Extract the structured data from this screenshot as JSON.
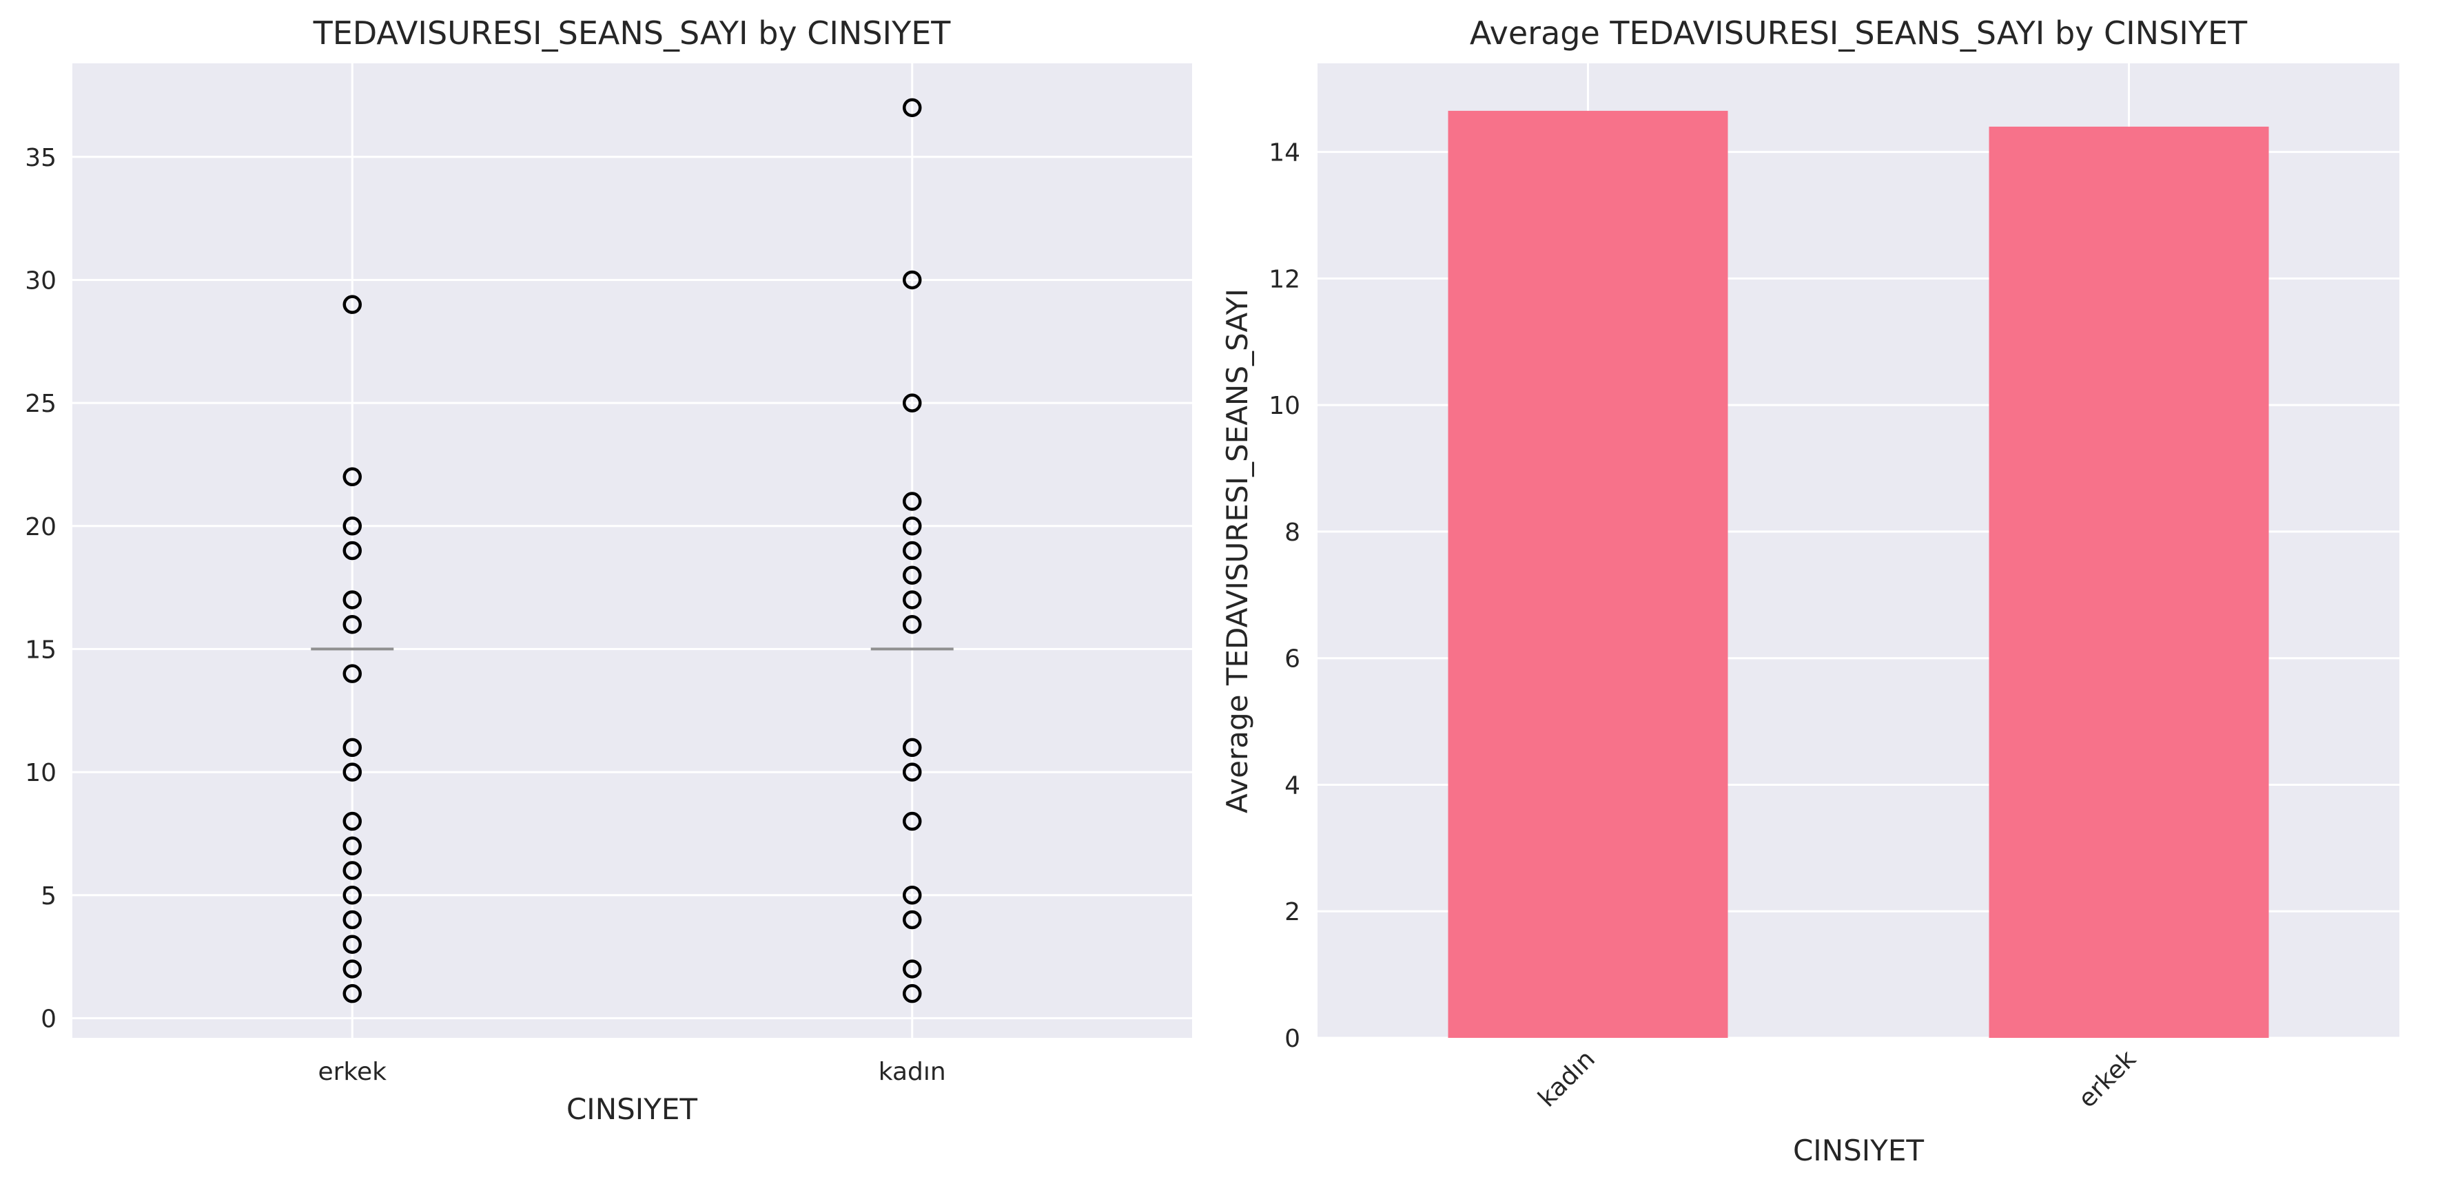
{
  "chart_data": [
    {
      "type": "box",
      "title": "TEDAVISURESI_SEANS_SAYI by CINSIYET",
      "xlabel": "CINSIYET",
      "ylabel": "",
      "ylim": [
        -0.8,
        38.8
      ],
      "yticks": [
        0,
        5,
        10,
        15,
        20,
        25,
        30,
        35
      ],
      "grid": true,
      "categories": [
        "erkek",
        "kadın"
      ],
      "boxes": [
        {
          "category": "erkek",
          "median": 15,
          "fliers": [
            1,
            2,
            3,
            4,
            5,
            6,
            7,
            8,
            10,
            11,
            14,
            16,
            17,
            19,
            20,
            22,
            29
          ]
        },
        {
          "category": "kadın",
          "median": 15,
          "fliers": [
            1,
            2,
            4,
            5,
            8,
            10,
            11,
            16,
            17,
            18,
            19,
            20,
            21,
            25,
            30,
            37
          ]
        }
      ]
    },
    {
      "type": "bar",
      "title": "Average TEDAVISURESI_SEANS_SAYI by CINSIYET",
      "xlabel": "CINSIYET",
      "ylabel": "Average TEDAVISURESI_SEANS_SAYI",
      "ylim": [
        0,
        15.4
      ],
      "yticks": [
        0,
        2,
        4,
        6,
        8,
        10,
        12,
        14
      ],
      "grid": true,
      "categories": [
        "kadın",
        "erkek"
      ],
      "values": [
        14.65,
        14.4
      ],
      "color": "#f7728a"
    }
  ]
}
